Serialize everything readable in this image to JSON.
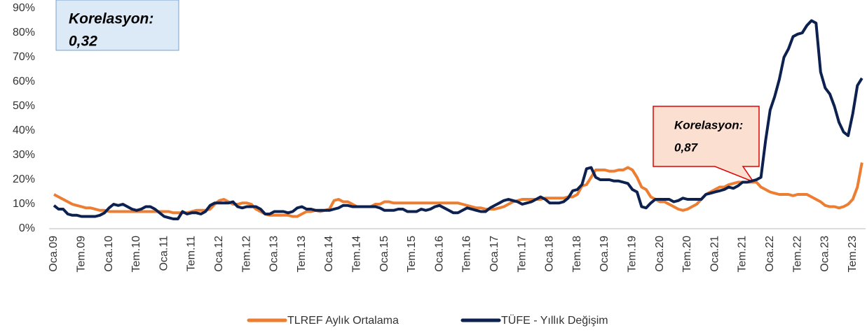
{
  "chart_data": {
    "type": "line",
    "categories": [
      "Oca.09",
      null,
      null,
      null,
      null,
      null,
      "Tem.09",
      null,
      null,
      null,
      null,
      null,
      "Oca.10",
      null,
      null,
      null,
      null,
      null,
      "Tem.10",
      null,
      null,
      null,
      null,
      null,
      "Oca.11",
      null,
      null,
      null,
      null,
      null,
      "Tem.11",
      null,
      null,
      null,
      null,
      null,
      "Oca.12",
      null,
      null,
      null,
      null,
      null,
      "Tem.12",
      null,
      null,
      null,
      null,
      null,
      "Oca.13",
      null,
      null,
      null,
      null,
      null,
      "Tem.13",
      null,
      null,
      null,
      null,
      null,
      "Oca.14",
      null,
      null,
      null,
      null,
      null,
      "Tem.14",
      null,
      null,
      null,
      null,
      null,
      "Oca.15",
      null,
      null,
      null,
      null,
      null,
      "Tem.15",
      null,
      null,
      null,
      null,
      null,
      "Oca.16",
      null,
      null,
      null,
      null,
      null,
      "Tem.16",
      null,
      null,
      null,
      null,
      null,
      "Oca.17",
      null,
      null,
      null,
      null,
      null,
      "Tem.17",
      null,
      null,
      null,
      null,
      null,
      "Oca.18",
      null,
      null,
      null,
      null,
      null,
      "Tem.18",
      null,
      null,
      null,
      null,
      null,
      "Oca.19",
      null,
      null,
      null,
      null,
      null,
      "Tem.19",
      null,
      null,
      null,
      null,
      null,
      "Oca.20",
      null,
      null,
      null,
      null,
      null,
      "Tem.20",
      null,
      null,
      null,
      null,
      null,
      "Oca.21",
      null,
      null,
      null,
      null,
      null,
      "Tem.21",
      null,
      null,
      null,
      null,
      null,
      "Oca.22",
      null,
      null,
      null,
      null,
      null,
      "Tem.22",
      null,
      null,
      null,
      null,
      null,
      "Oca.23",
      null,
      null,
      null,
      null,
      null,
      "Tem.23",
      null,
      null
    ],
    "series": [
      {
        "name": "TLREF Aylık Ortalama",
        "color": "#ed7d31",
        "values": [
          14,
          13,
          12,
          11,
          10,
          9.5,
          9,
          8.5,
          8.5,
          8,
          7.5,
          7.5,
          7,
          7,
          7,
          7,
          7,
          7,
          7,
          7,
          7,
          7,
          7,
          7,
          7,
          7,
          6.5,
          6.5,
          6.5,
          6.5,
          7,
          7.5,
          7.5,
          7.5,
          8,
          10,
          11.5,
          12,
          11,
          10,
          10,
          10.5,
          10.5,
          10,
          8,
          7,
          6,
          5.5,
          5.5,
          5.5,
          5.5,
          5.5,
          5,
          5,
          6,
          7,
          7,
          7.5,
          7,
          7.5,
          8,
          11.5,
          12,
          11,
          11,
          10,
          9,
          9,
          9,
          9,
          10,
          10,
          11,
          11,
          10.5,
          10.5,
          10.5,
          10.5,
          10.5,
          10.5,
          10.5,
          10.5,
          10.5,
          10.5,
          10.5,
          10.5,
          10.5,
          10.5,
          10.5,
          10,
          9.5,
          9,
          8.5,
          8.5,
          8,
          8,
          8,
          8.5,
          9,
          10,
          11,
          11.5,
          12,
          12,
          12,
          12,
          12,
          12.5,
          12.5,
          12.5,
          12.5,
          12.5,
          13,
          13,
          14,
          17.5,
          18,
          21,
          24,
          24,
          24,
          23.5,
          23.5,
          24,
          24,
          25,
          24,
          21,
          17,
          16,
          13,
          12,
          11,
          11,
          10,
          9,
          8,
          7.5,
          8,
          9,
          10,
          12,
          14,
          15,
          16,
          17,
          17,
          18,
          18.5,
          19,
          19,
          19,
          19,
          19,
          17,
          16,
          15,
          14.5,
          14,
          14,
          14,
          13.5,
          14,
          14,
          14,
          13,
          12,
          11,
          9.5,
          9,
          9,
          8.5,
          9,
          10,
          12,
          17,
          27
        ]
      },
      {
        "name": "TÜFE - Yıllık Değişim",
        "color": "#0d2151",
        "values": [
          9.5,
          8,
          8,
          6,
          5.5,
          5.5,
          5,
          5,
          5,
          5,
          5.5,
          6.5,
          8.5,
          10,
          9.5,
          10,
          9,
          8,
          7.5,
          8,
          9,
          9,
          8,
          6.5,
          5,
          4.5,
          4,
          4,
          7,
          6,
          6.5,
          6.5,
          6,
          7,
          9.5,
          10.5,
          10.5,
          10.5,
          10.5,
          11,
          9,
          8.5,
          9,
          9,
          9,
          8,
          6,
          6,
          7,
          7,
          7,
          6.5,
          7,
          8.5,
          9,
          8,
          8,
          7.5,
          7.5,
          7.5,
          7.5,
          8,
          8.5,
          9.5,
          9.5,
          9,
          9,
          9,
          9,
          9,
          9,
          8.5,
          7.5,
          7.5,
          7.5,
          8,
          8,
          7,
          7,
          7,
          8,
          7.5,
          8,
          9,
          9.5,
          8.5,
          7.5,
          6.5,
          6.5,
          7.5,
          8.5,
          8,
          7.5,
          7,
          7,
          8.5,
          9.5,
          10.5,
          11.5,
          12,
          11.5,
          11,
          10,
          10.5,
          11,
          12,
          13,
          12,
          10.5,
          10.5,
          10.5,
          11,
          12.5,
          15.5,
          16,
          18,
          24.5,
          25,
          21,
          20,
          20,
          20,
          19.5,
          19.5,
          19,
          18.5,
          16,
          15,
          9,
          8.5,
          10.5,
          12,
          12,
          12,
          12,
          11,
          11.5,
          12.5,
          12,
          12,
          12,
          12,
          14,
          14.5,
          15,
          15.5,
          16,
          17,
          16.5,
          17.5,
          19,
          19,
          19.5,
          20,
          21,
          36,
          48.5,
          54,
          61,
          70,
          73.5,
          78.5,
          79.5,
          80,
          83,
          85,
          84,
          64,
          57.5,
          55,
          50,
          43.5,
          39.5,
          38,
          47,
          58.5,
          61.5
        ]
      }
    ],
    "ylim": [
      0,
      90
    ],
    "yticks": [
      {
        "value": 0,
        "label": "0%"
      },
      {
        "value": 10,
        "label": "10%"
      },
      {
        "value": 20,
        "label": "20%"
      },
      {
        "value": 30,
        "label": "30%"
      },
      {
        "value": 40,
        "label": "40%"
      },
      {
        "value": 50,
        "label": "50%"
      },
      {
        "value": 60,
        "label": "60%"
      },
      {
        "value": 70,
        "label": "70%"
      },
      {
        "value": 80,
        "label": "80%"
      },
      {
        "value": 90,
        "label": "90%"
      }
    ],
    "grid": false,
    "legend": "bottom",
    "annotations": [
      {
        "text": [
          "Korelasyon:",
          "0,32"
        ]
      },
      {
        "text": [
          "Korelasyon:",
          "0,87"
        ]
      }
    ]
  }
}
